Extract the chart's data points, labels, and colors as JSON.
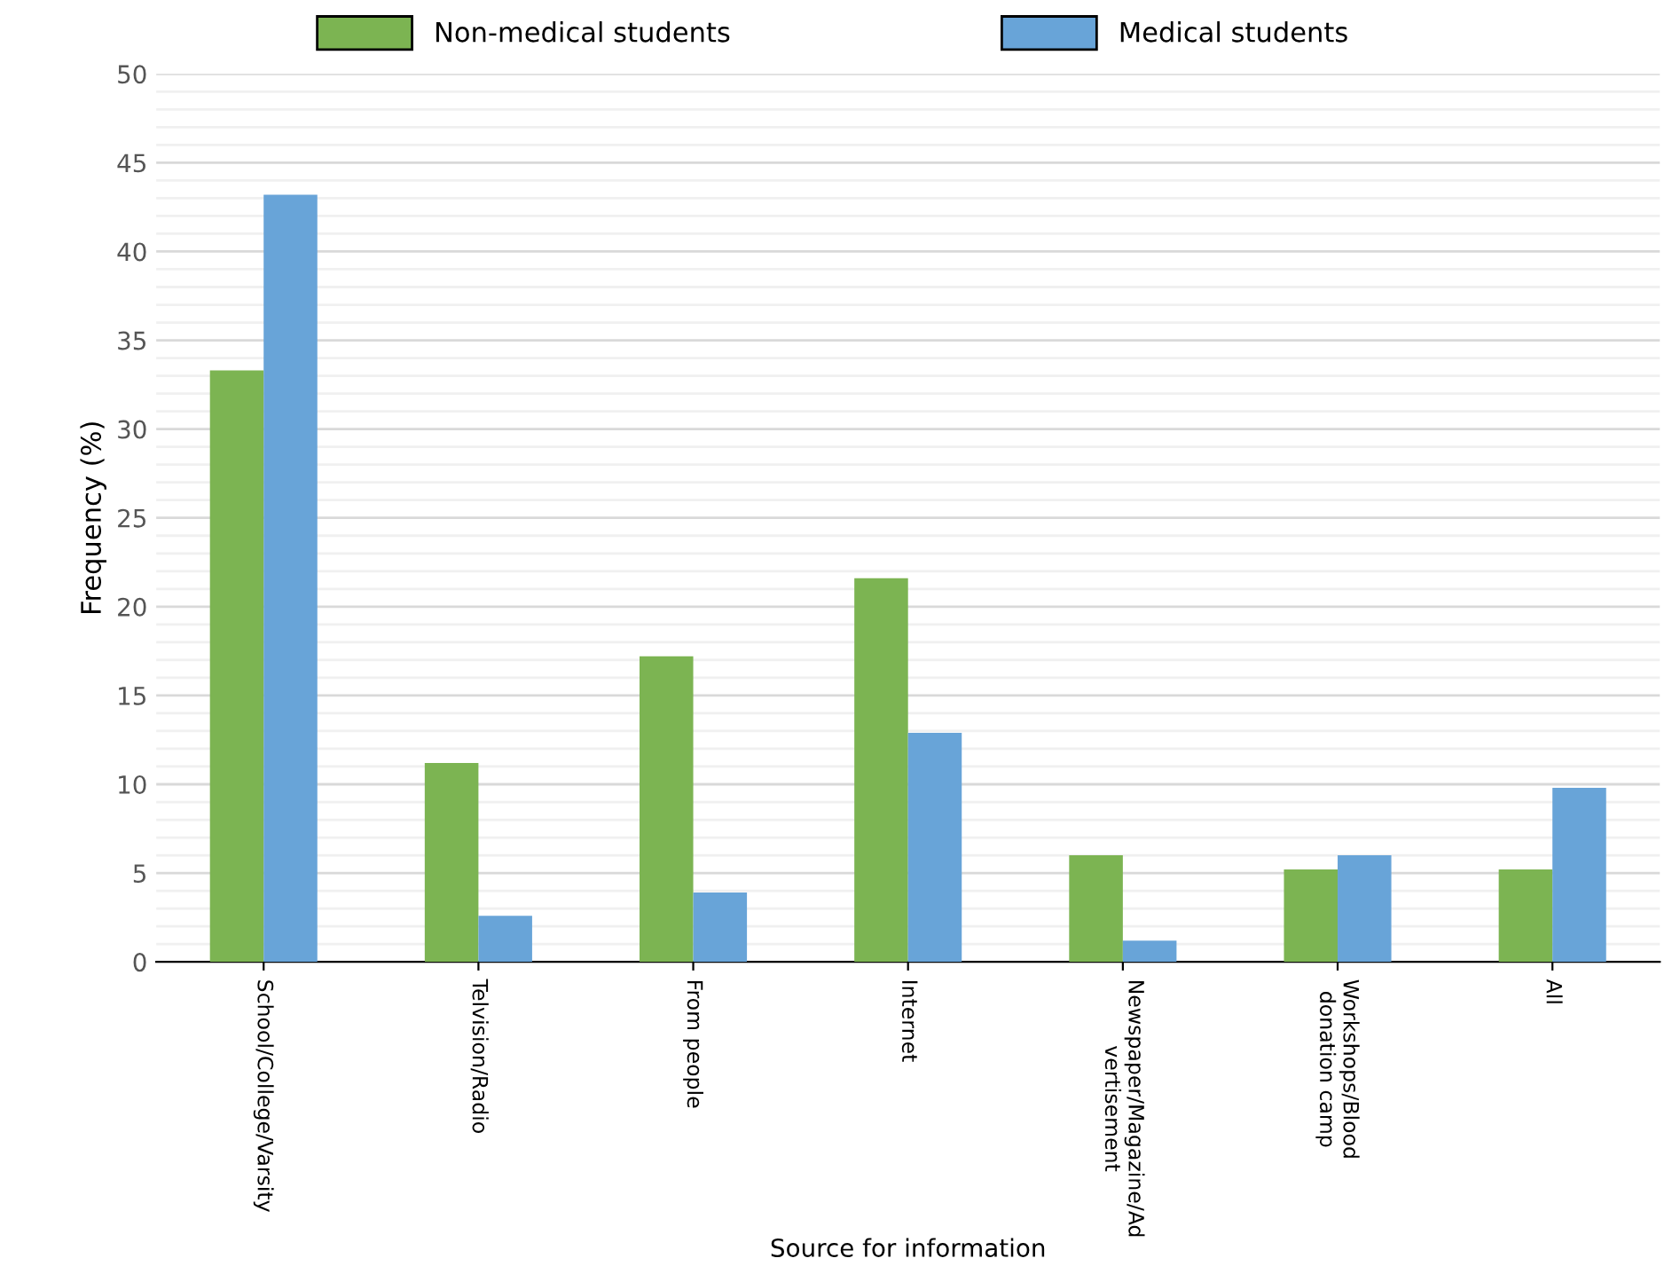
{
  "chart_data": {
    "type": "bar",
    "xlabel": "Source for information",
    "ylabel": "Frequency (%)",
    "categories": [
      "School/College/Varsity",
      "Telvision/Radio",
      "From people",
      "Internet",
      "Newspaper/Magazine/Advertisement",
      "Workshops/Blood donation camp",
      "All"
    ],
    "series": [
      {
        "name": "Non-medical students",
        "color": "#7cb452",
        "values": [
          33.3,
          11.2,
          17.2,
          21.6,
          6.0,
          5.2,
          5.2
        ]
      },
      {
        "name": "Medical students",
        "color": "#68a4d8",
        "values": [
          43.2,
          2.6,
          3.9,
          12.9,
          1.2,
          6.0,
          9.8
        ]
      }
    ],
    "ylim": [
      0,
      50
    ],
    "yticks": [
      0,
      5,
      10,
      15,
      20,
      25,
      30,
      35,
      40,
      45,
      50
    ],
    "grid": "y",
    "legend": "top"
  }
}
